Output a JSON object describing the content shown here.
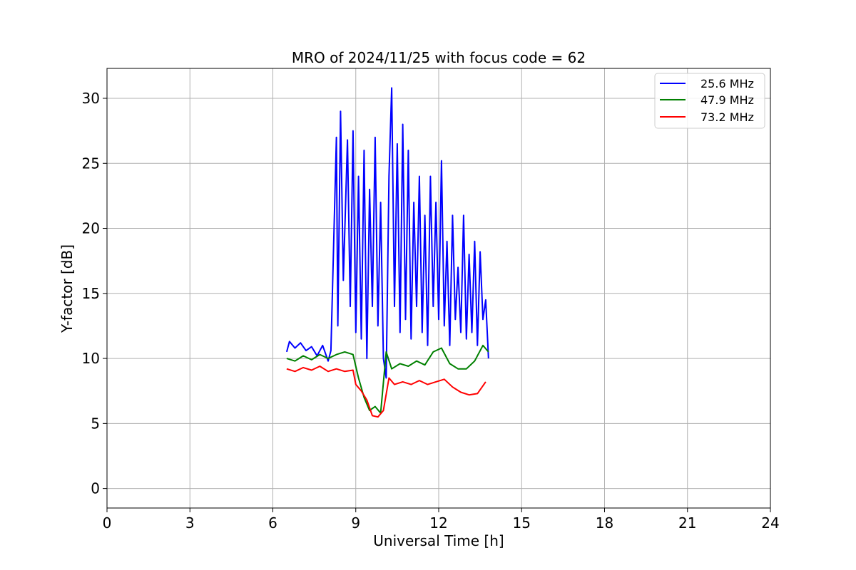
{
  "chart_data": {
    "type": "line",
    "title": "MRO of 2024/11/25 with focus code = 62",
    "xlabel": "Universal Time [h]",
    "ylabel": "Y-factor [dB]",
    "xlim": [
      0,
      24
    ],
    "ylim": [
      -1.5,
      32.3
    ],
    "xticks": [
      0,
      3,
      6,
      9,
      12,
      15,
      18,
      21,
      24
    ],
    "yticks": [
      0,
      5,
      10,
      15,
      20,
      25,
      30
    ],
    "grid": true,
    "legend_position": "top-right",
    "series": [
      {
        "name": "25.6 MHz",
        "color": "#0000ff",
        "x": [
          6.5,
          6.6,
          6.8,
          7.0,
          7.2,
          7.4,
          7.6,
          7.8,
          8.0,
          8.1,
          8.3,
          8.35,
          8.45,
          8.55,
          8.7,
          8.8,
          8.9,
          9.0,
          9.1,
          9.2,
          9.3,
          9.4,
          9.5,
          9.6,
          9.7,
          9.8,
          9.9,
          10.0,
          10.1,
          10.2,
          10.3,
          10.4,
          10.5,
          10.6,
          10.7,
          10.8,
          10.9,
          11.0,
          11.1,
          11.2,
          11.3,
          11.4,
          11.5,
          11.6,
          11.7,
          11.8,
          11.9,
          12.0,
          12.1,
          12.2,
          12.3,
          12.4,
          12.5,
          12.6,
          12.7,
          12.8,
          12.9,
          13.0,
          13.1,
          13.2,
          13.3,
          13.4,
          13.5,
          13.6,
          13.7,
          13.8
        ],
        "values": [
          10.5,
          11.3,
          10.8,
          11.2,
          10.6,
          10.9,
          10.2,
          11.0,
          9.8,
          10.6,
          27.0,
          12.5,
          29.0,
          16.0,
          26.8,
          14.0,
          27.5,
          12.0,
          24.0,
          11.5,
          26.0,
          10.0,
          23.0,
          14.0,
          27.0,
          12.5,
          22.0,
          10.0,
          8.5,
          24.0,
          30.8,
          14.0,
          26.5,
          12.0,
          28.0,
          13.0,
          26.0,
          11.5,
          22.0,
          14.0,
          24.0,
          12.0,
          21.0,
          11.0,
          24.0,
          14.0,
          22.0,
          13.0,
          25.2,
          12.5,
          19.0,
          11.0,
          21.0,
          13.0,
          17.0,
          12.0,
          21.0,
          11.5,
          18.0,
          12.0,
          19.0,
          11.0,
          18.2,
          13.0,
          14.5,
          10.0
        ]
      },
      {
        "name": "47.9 MHz",
        "color": "#008000",
        "x": [
          6.5,
          6.8,
          7.1,
          7.4,
          7.7,
          8.0,
          8.3,
          8.6,
          8.9,
          9.1,
          9.3,
          9.5,
          9.7,
          9.9,
          10.1,
          10.3,
          10.6,
          10.9,
          11.2,
          11.5,
          11.8,
          12.1,
          12.4,
          12.7,
          13.0,
          13.3,
          13.6,
          13.8
        ],
        "values": [
          10.0,
          9.8,
          10.2,
          9.9,
          10.3,
          10.0,
          10.3,
          10.5,
          10.3,
          8.5,
          7.0,
          6.0,
          6.3,
          5.8,
          10.5,
          9.2,
          9.6,
          9.4,
          9.8,
          9.5,
          10.5,
          10.8,
          9.6,
          9.2,
          9.2,
          9.8,
          11.0,
          10.5
        ]
      },
      {
        "name": "73.2 MHz",
        "color": "#ff0000",
        "x": [
          6.5,
          6.8,
          7.1,
          7.4,
          7.7,
          8.0,
          8.3,
          8.6,
          8.9,
          9.0,
          9.2,
          9.4,
          9.6,
          9.8,
          10.0,
          10.2,
          10.4,
          10.7,
          11.0,
          11.3,
          11.6,
          11.9,
          12.2,
          12.5,
          12.8,
          13.1,
          13.4,
          13.7
        ],
        "values": [
          9.2,
          9.0,
          9.3,
          9.1,
          9.4,
          9.0,
          9.2,
          9.0,
          9.1,
          8.0,
          7.5,
          6.8,
          5.6,
          5.5,
          6.0,
          8.5,
          8.0,
          8.2,
          8.0,
          8.3,
          8.0,
          8.2,
          8.4,
          7.8,
          7.4,
          7.2,
          7.3,
          8.2
        ]
      }
    ]
  }
}
